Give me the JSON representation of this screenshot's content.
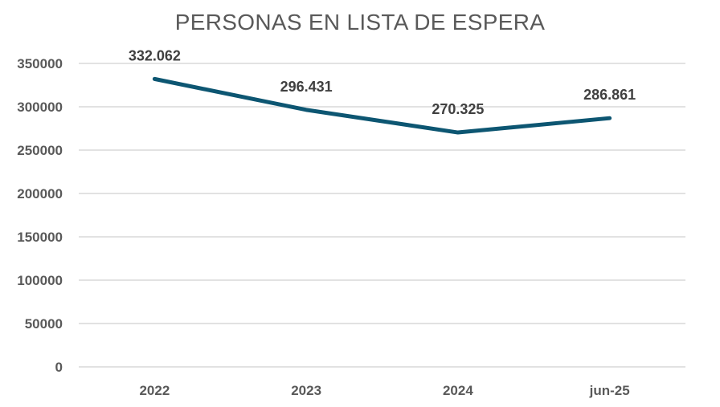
{
  "colors": {
    "series": "#0d5672",
    "grid": "#d9d9d9",
    "text": "#595959"
  },
  "chart_data": {
    "type": "line",
    "title": "PERSONAS EN LISTA DE ESPERA",
    "categories": [
      "2022",
      "2023",
      "2024",
      "jun-25"
    ],
    "series": [
      {
        "values": [
          332062,
          296431,
          270325,
          286861
        ],
        "data_labels": [
          "332.062",
          "296.431",
          "270.325",
          "286.861"
        ]
      }
    ],
    "y_ticks": [
      "0",
      "50000",
      "100000",
      "150000",
      "200000",
      "250000",
      "300000",
      "350000"
    ],
    "ylim": [
      0,
      350000
    ],
    "xlabel": "",
    "ylabel": "",
    "grid": true,
    "legend": "none"
  }
}
